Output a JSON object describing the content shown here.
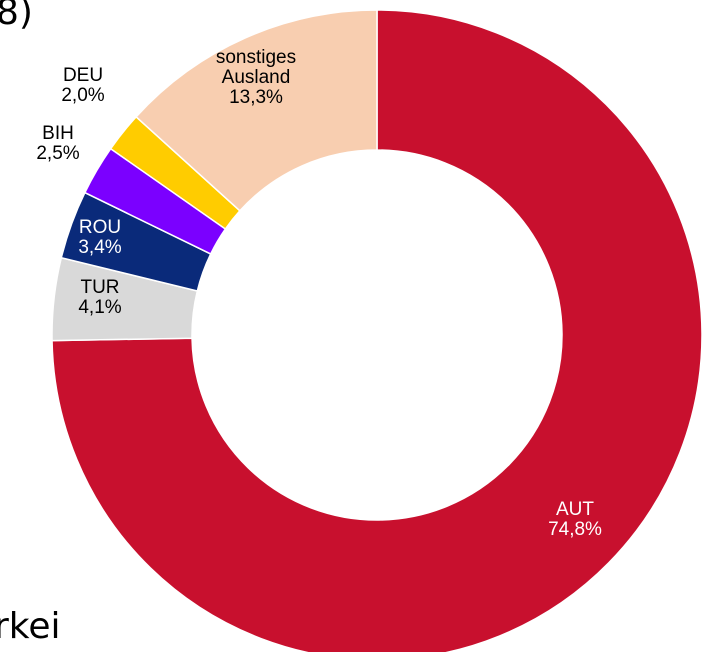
{
  "fragments": [
    "8)",
    "rkei"
  ],
  "chart_data": {
    "type": "pie",
    "categories": [
      "AUT",
      "TUR",
      "ROU",
      "BIH",
      "DEU",
      "sonstiges Ausland"
    ],
    "values": [
      74.8,
      4.1,
      3.4,
      2.5,
      2.0,
      13.3
    ],
    "value_labels": [
      "74,8%",
      "4,1%",
      "3,4%",
      "2,5%",
      "2,0%",
      "13,3%"
    ],
    "colors": [
      "#c8102e",
      "#d9d9d9",
      "#0a2a7a",
      "#7b00ff",
      "#ffcc00",
      "#f8ceb0"
    ],
    "donut": true
  }
}
